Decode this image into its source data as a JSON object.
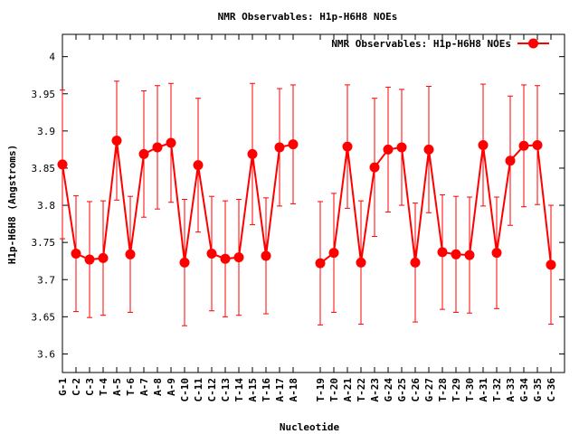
{
  "chart_data": {
    "type": "line",
    "title": "NMR Observables: H1p-H6H8 NOEs",
    "xlabel": "Nucleotide",
    "ylabel": "H1p-H6H8 (Angstroms)",
    "ylim": [
      3.575,
      4.03
    ],
    "yticks": [
      3.6,
      3.65,
      3.7,
      3.75,
      3.8,
      3.85,
      3.9,
      3.95,
      4
    ],
    "ytick_labels": [
      "3.6",
      "3.65",
      "3.7",
      "3.75",
      "3.8",
      "3.85",
      "3.9",
      "3.95",
      "4"
    ],
    "grid": false,
    "legend_position": "top-right",
    "series": [
      {
        "name": "NMR Observables: H1p-H6H8 NOEs",
        "color": "#ff0000",
        "segments": [
          {
            "categories": [
              "G-1",
              "C-2",
              "C-3",
              "T-4",
              "A-5",
              "T-6",
              "A-7",
              "A-8",
              "A-9",
              "C-10",
              "C-11",
              "C-12",
              "C-13",
              "T-14",
              "A-15",
              "T-16",
              "A-17",
              "A-18"
            ],
            "values": [
              3.855,
              3.735,
              3.727,
              3.729,
              3.887,
              3.734,
              3.869,
              3.878,
              3.884,
              3.723,
              3.854,
              3.735,
              3.728,
              3.73,
              3.869,
              3.732,
              3.878,
              3.882
            ],
            "errors": [
              0.1,
              0.078,
              0.078,
              0.077,
              0.08,
              0.078,
              0.085,
              0.083,
              0.08,
              0.085,
              0.09,
              0.077,
              0.078,
              0.078,
              0.095,
              0.078,
              0.079,
              0.08
            ]
          },
          {
            "categories": [
              "T-19",
              "T-20",
              "A-21",
              "T-22",
              "A-23",
              "G-24",
              "G-25",
              "C-26",
              "G-27",
              "T-28",
              "T-29",
              "T-30",
              "A-31",
              "T-32",
              "A-33",
              "G-34",
              "G-35",
              "C-36"
            ],
            "values": [
              3.722,
              3.736,
              3.879,
              3.723,
              3.851,
              3.875,
              3.878,
              3.723,
              3.875,
              3.737,
              3.734,
              3.733,
              3.881,
              3.736,
              3.86,
              3.88,
              3.881,
              3.72
            ],
            "errors": [
              0.083,
              0.08,
              0.083,
              0.083,
              0.093,
              0.084,
              0.078,
              0.08,
              0.085,
              0.077,
              0.078,
              0.078,
              0.082,
              0.075,
              0.087,
              0.082,
              0.08,
              0.08
            ]
          }
        ]
      }
    ]
  }
}
